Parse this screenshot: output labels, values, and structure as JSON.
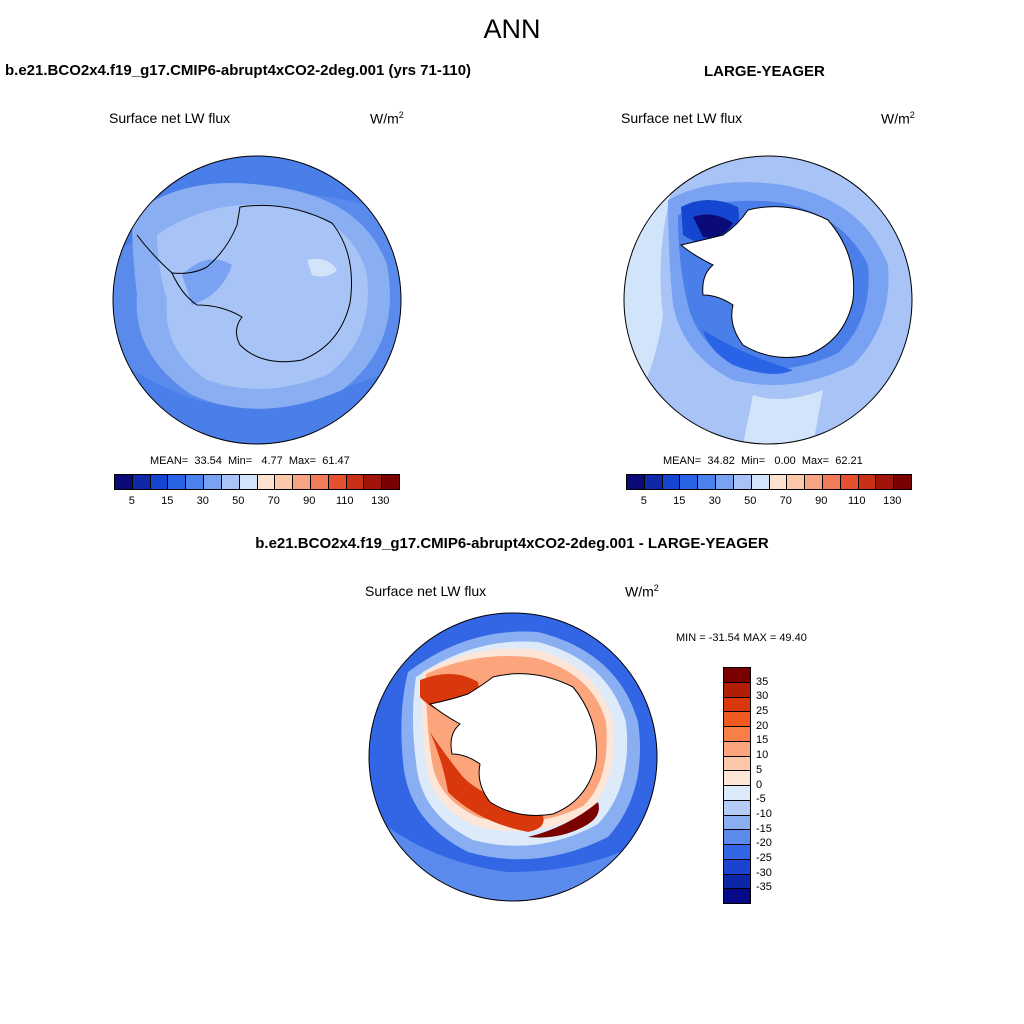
{
  "figure": {
    "title": "ANN"
  },
  "panels": {
    "case": {
      "title": "b.e21.BCO2x4.f19_g17.CMIP6-abrupt4xCO2-2deg.001 (yrs 71-110)",
      "variable": "Surface net LW flux",
      "units": "W/m",
      "units_exp": "2",
      "mean_label": "MEAN=",
      "mean": "33.54",
      "min_label": "Min=",
      "min": "4.77",
      "max_label": "Max=",
      "max": "61.47"
    },
    "obs": {
      "title": "LARGE-YEAGER",
      "variable": "Surface net LW flux",
      "units": "W/m",
      "units_exp": "2",
      "mean_label": "MEAN=",
      "mean": "34.82",
      "min_label": "Min=",
      "min": "0.00",
      "max_label": "Max=",
      "max": "62.21"
    },
    "diff": {
      "title": "b.e21.BCO2x4.f19_g17.CMIP6-abrupt4xCO2-2deg.001 - LARGE-YEAGER",
      "variable": "Surface net LW flux",
      "units": "W/m",
      "units_exp": "2",
      "minmax": "MIN = -31.54 MAX =  49.40"
    }
  },
  "colorbars": {
    "field": {
      "colors": [
        "#0a0a78",
        "#1028a8",
        "#1446d2",
        "#2a64e6",
        "#4a82ee",
        "#7aa2f2",
        "#a8c4f6",
        "#d2e4fa",
        "#fde2d2",
        "#fcc8aa",
        "#f7a484",
        "#f27c58",
        "#e6502e",
        "#c83018",
        "#a0140a",
        "#780000"
      ],
      "tick_labels": [
        "5",
        "15",
        "30",
        "50",
        "70",
        "90",
        "110",
        "130"
      ]
    },
    "diff": {
      "colors": [
        "#7a0000",
        "#b01e08",
        "#d8380c",
        "#f05a20",
        "#f88048",
        "#fca47c",
        "#fdc8aa",
        "#fde6d8",
        "#dceafa",
        "#b4ccf6",
        "#8aaef2",
        "#5a8aec",
        "#3366e4",
        "#1a44d0",
        "#0c26a8",
        "#060a88"
      ],
      "tick_labels": [
        "35",
        "30",
        "25",
        "20",
        "15",
        "10",
        "5",
        "0",
        "-5",
        "-10",
        "-15",
        "-20",
        "-25",
        "-30",
        "-35"
      ]
    }
  }
}
